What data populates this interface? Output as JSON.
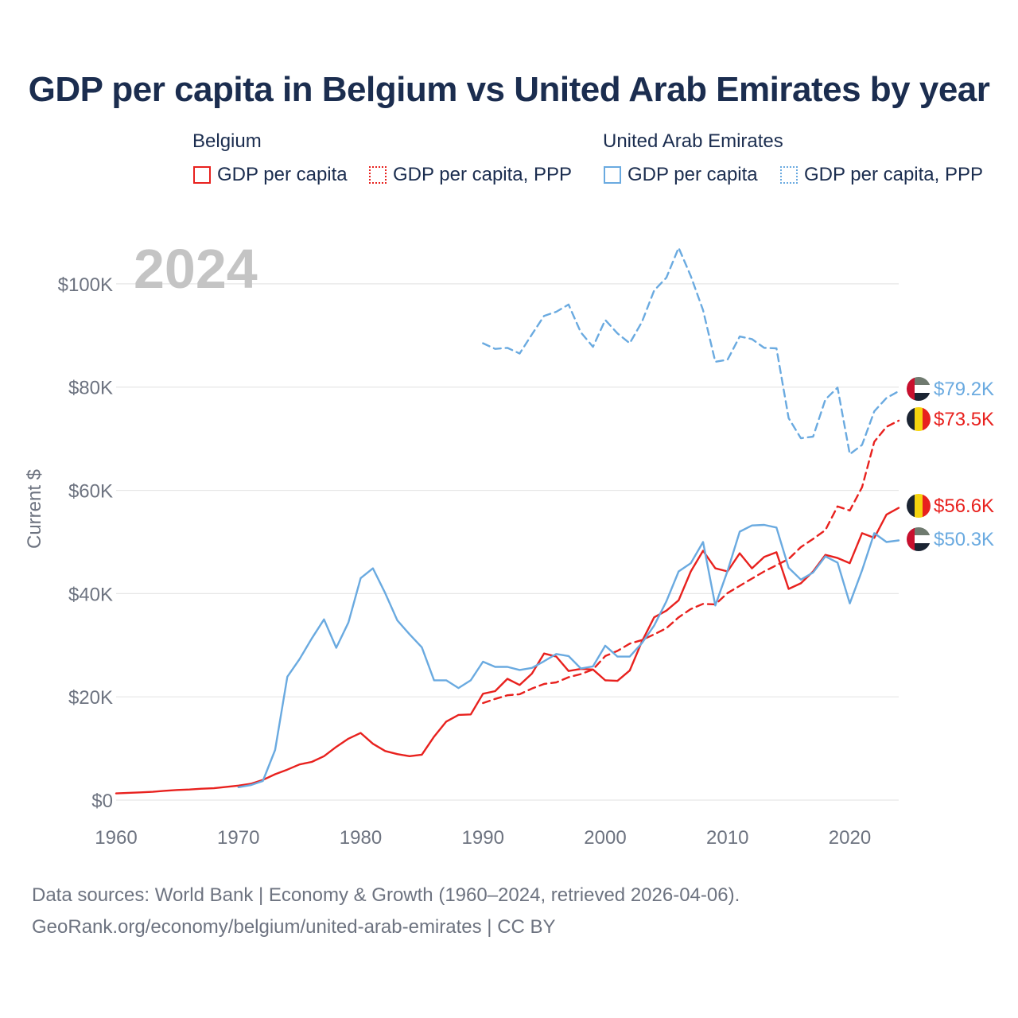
{
  "title": "GDP per capita in Belgium vs United Arab Emirates by year",
  "legend": {
    "belgium": {
      "name": "Belgium",
      "solid": "GDP per capita",
      "dotted": "GDP per capita, PPP"
    },
    "uae": {
      "name": "United Arab Emirates",
      "solid": "GDP per capita",
      "dotted": "GDP per capita, PPP"
    }
  },
  "colors": {
    "belgium": "#e8211e",
    "uae": "#6aaae0",
    "grid": "#e6e6e6",
    "axis_text": "#6d7380",
    "year_watermark": "#c4c4c4"
  },
  "footer": {
    "line1": "Data sources: World Bank | Economy & Growth (1960–2024, retrieved 2026-04-06).",
    "line2": "GeoRank.org/economy/belgium/united-arab-emirates | CC BY"
  },
  "chart_data": {
    "type": "line",
    "title": "GDP per capita in Belgium vs United Arab Emirates by year",
    "watermark_year": "2024",
    "xlabel": "",
    "ylabel": "Current $",
    "xlim": [
      1960,
      2024
    ],
    "ylim": [
      0,
      110000
    ],
    "x_ticks": [
      1960,
      1970,
      1980,
      1990,
      2000,
      2010,
      2020
    ],
    "y_ticks": [
      {
        "value": 0,
        "label": "$0"
      },
      {
        "value": 20000,
        "label": "$20K"
      },
      {
        "value": 40000,
        "label": "$40K"
      },
      {
        "value": 60000,
        "label": "$60K"
      },
      {
        "value": 80000,
        "label": "$80K"
      },
      {
        "value": 100000,
        "label": "$100K"
      }
    ],
    "grid": true,
    "series": [
      {
        "name": "Belgium GDP per capita",
        "country": "Belgium",
        "style": "solid",
        "color": "#e8211e",
        "end_label": "$56.6K",
        "x": [
          1960,
          1961,
          1962,
          1963,
          1964,
          1965,
          1966,
          1967,
          1968,
          1969,
          1970,
          1971,
          1972,
          1973,
          1974,
          1975,
          1976,
          1977,
          1978,
          1979,
          1980,
          1981,
          1982,
          1983,
          1984,
          1985,
          1986,
          1987,
          1988,
          1989,
          1990,
          1991,
          1992,
          1993,
          1994,
          1995,
          1996,
          1997,
          1998,
          1999,
          2000,
          2001,
          2002,
          2003,
          2004,
          2005,
          2006,
          2007,
          2008,
          2009,
          2010,
          2011,
          2012,
          2013,
          2014,
          2015,
          2016,
          2017,
          2018,
          2019,
          2020,
          2021,
          2022,
          2023,
          2024
        ],
        "values": [
          1300,
          1400,
          1500,
          1600,
          1800,
          1950,
          2050,
          2200,
          2300,
          2550,
          2800,
          3150,
          3900,
          5000,
          5900,
          6900,
          7400,
          8500,
          10300,
          11900,
          13000,
          10900,
          9500,
          8900,
          8500,
          8800,
          12300,
          15200,
          16500,
          16600,
          20600,
          21100,
          23500,
          22300,
          24500,
          28400,
          27800,
          25000,
          25400,
          25300,
          23200,
          23100,
          25100,
          30700,
          35400,
          36700,
          38700,
          44300,
          48300,
          44900,
          44300,
          47800,
          44900,
          47100,
          48000,
          40900,
          42000,
          44300,
          47500,
          46900,
          45900,
          51700,
          50800,
          55300,
          56600
        ]
      },
      {
        "name": "Belgium GDP per capita, PPP",
        "country": "Belgium",
        "style": "dashed",
        "color": "#e8211e",
        "end_label": "$73.5K",
        "x": [
          1990,
          1991,
          1992,
          1993,
          1994,
          1995,
          1996,
          1997,
          1998,
          1999,
          2000,
          2001,
          2002,
          2003,
          2004,
          2005,
          2006,
          2007,
          2008,
          2009,
          2010,
          2011,
          2012,
          2013,
          2014,
          2015,
          2016,
          2017,
          2018,
          2019,
          2020,
          2021,
          2022,
          2023,
          2024
        ],
        "values": [
          18800,
          19600,
          20300,
          20500,
          21600,
          22500,
          22800,
          23800,
          24400,
          25300,
          27900,
          28900,
          30300,
          31000,
          32100,
          33300,
          35400,
          37000,
          38000,
          37900,
          40100,
          41500,
          42900,
          44300,
          45500,
          46700,
          49000,
          50600,
          52300,
          56900,
          56100,
          60600,
          69400,
          72300,
          73500
        ]
      },
      {
        "name": "United Arab Emirates GDP per capita",
        "country": "United Arab Emirates",
        "style": "solid",
        "color": "#6aaae0",
        "end_label": "$50.3K",
        "x": [
          1970,
          1971,
          1972,
          1973,
          1974,
          1975,
          1976,
          1977,
          1978,
          1979,
          1980,
          1981,
          1982,
          1983,
          1984,
          1985,
          1986,
          1987,
          1988,
          1989,
          1990,
          1991,
          1992,
          1993,
          1994,
          1995,
          1996,
          1997,
          1998,
          1999,
          2000,
          2001,
          2002,
          2003,
          2004,
          2005,
          2006,
          2007,
          2008,
          2009,
          2010,
          2011,
          2012,
          2013,
          2014,
          2015,
          2016,
          2017,
          2018,
          2019,
          2020,
          2021,
          2022,
          2023,
          2024
        ],
        "values": [
          2500,
          2900,
          3700,
          9700,
          23900,
          27300,
          31300,
          35000,
          29500,
          34400,
          43000,
          44900,
          40100,
          34800,
          32100,
          29600,
          23200,
          23200,
          21700,
          23200,
          26800,
          25800,
          25800,
          25200,
          25600,
          26900,
          28300,
          27900,
          25500,
          25900,
          29900,
          27800,
          27800,
          30400,
          33800,
          38500,
          44300,
          45900,
          50000,
          37700,
          44400,
          52000,
          53200,
          53300,
          52800,
          45000,
          42700,
          44100,
          47200,
          46000,
          38100,
          44500,
          51700,
          50000,
          50300
        ]
      },
      {
        "name": "United Arab Emirates GDP per capita, PPP",
        "country": "United Arab Emirates",
        "style": "dashed",
        "color": "#6aaae0",
        "end_label": "$79.2K",
        "x": [
          1990,
          1991,
          1992,
          1993,
          1994,
          1995,
          1996,
          1997,
          1998,
          1999,
          2000,
          2001,
          2002,
          2003,
          2004,
          2005,
          2006,
          2007,
          2008,
          2009,
          2010,
          2011,
          2012,
          2013,
          2014,
          2015,
          2016,
          2017,
          2018,
          2019,
          2020,
          2021,
          2022,
          2023,
          2024
        ],
        "values": [
          88500,
          87400,
          87600,
          86500,
          90200,
          93800,
          94600,
          96000,
          90600,
          87800,
          93000,
          90400,
          88500,
          92600,
          98700,
          101200,
          107000,
          101500,
          94900,
          84900,
          85300,
          89800,
          89300,
          87600,
          87500,
          74000,
          70100,
          70400,
          77600,
          79900,
          67000,
          68800,
          75300,
          77900,
          79200
        ]
      }
    ]
  }
}
